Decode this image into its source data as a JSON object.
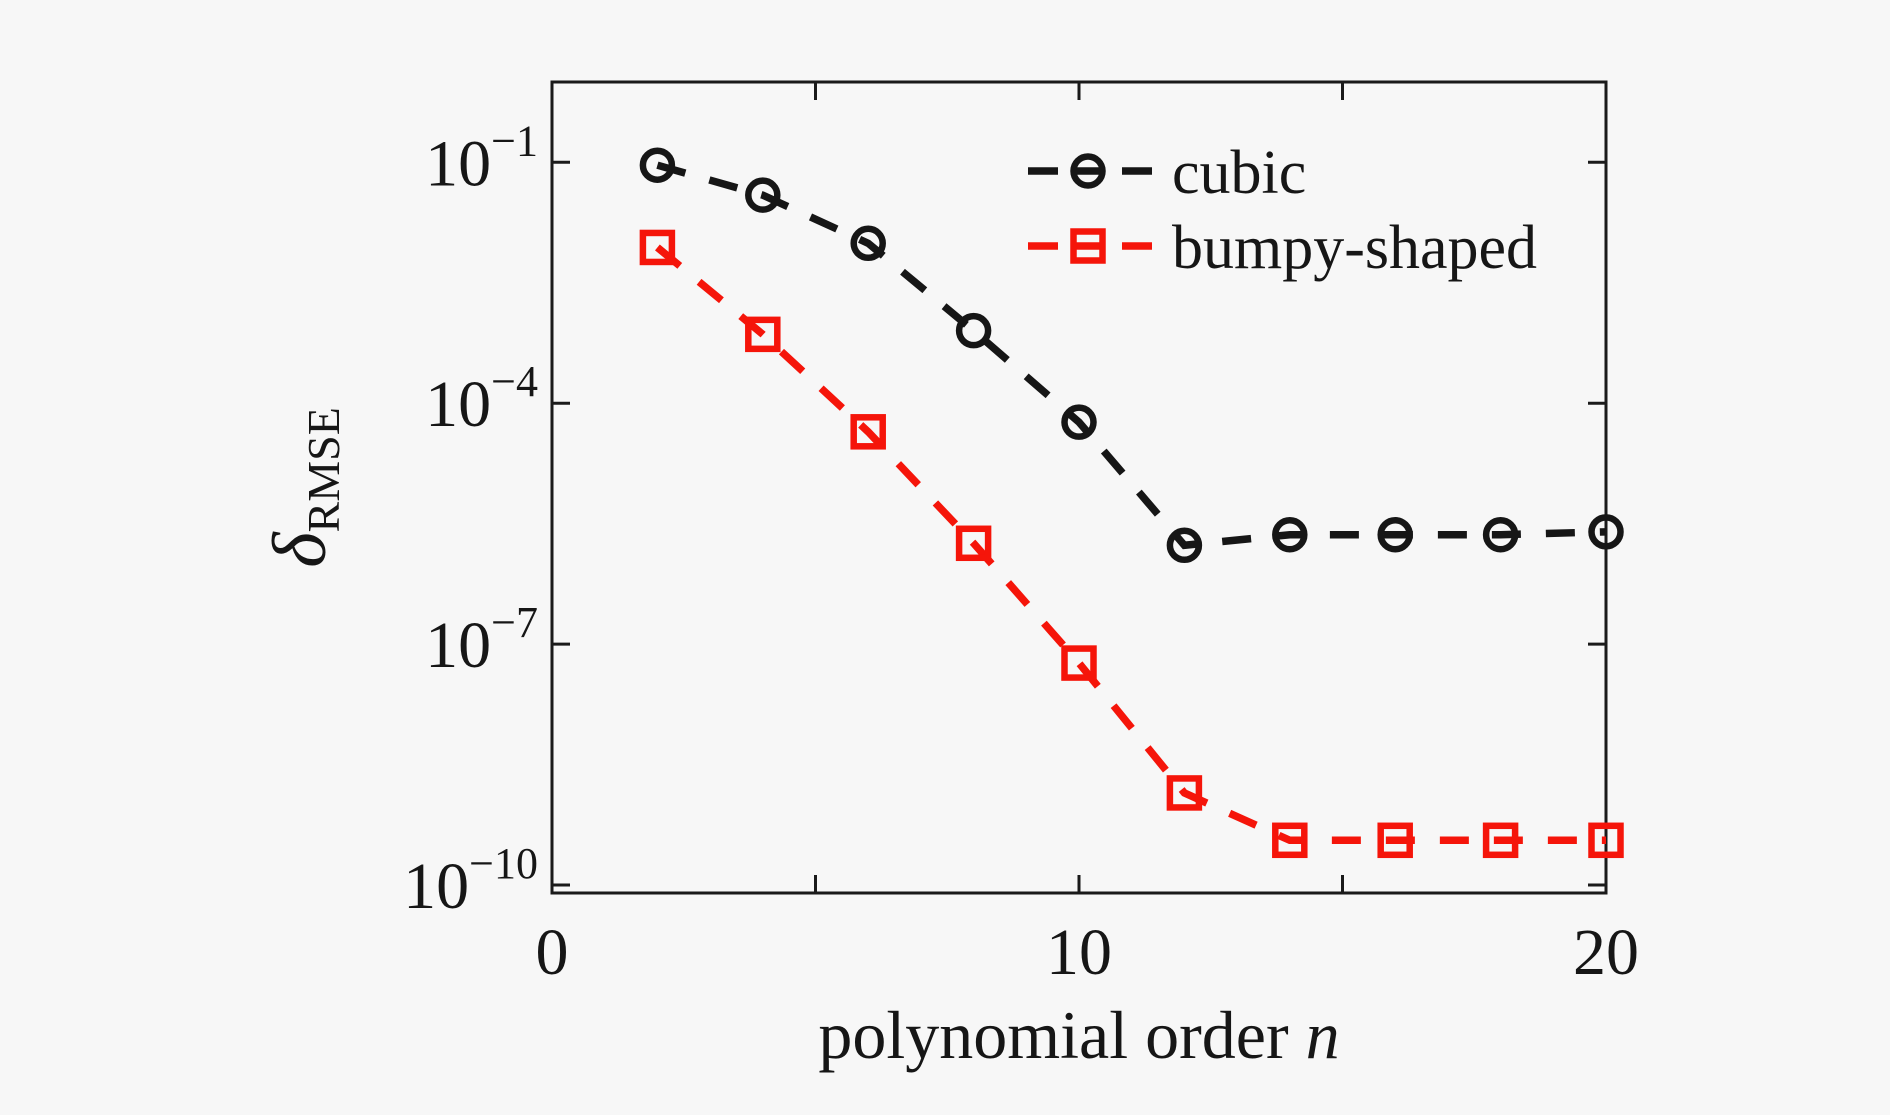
{
  "figure": {
    "background": "#f7f7f7",
    "frame_color": "#1a1a1a"
  },
  "chart_data": {
    "type": "line",
    "title": "",
    "xlabel": {
      "text": "polynomial order",
      "italic_suffix": "n"
    },
    "ylabel": {
      "symbol": "δ",
      "subscript": "RMSE"
    },
    "x_scale": "linear",
    "y_scale": "log",
    "xlim": [
      0,
      20
    ],
    "ylim_exponents": [
      -10.1,
      0
    ],
    "grid": false,
    "x_major_ticks": [
      0,
      5,
      10,
      15,
      20
    ],
    "x_labeled_ticks": [
      {
        "value": 0,
        "label": "0"
      },
      {
        "value": 10,
        "label": "10"
      },
      {
        "value": 20,
        "label": "20"
      }
    ],
    "y_labeled_ticks": [
      {
        "exponent": -1,
        "base": "10",
        "exp_label": "−1"
      },
      {
        "exponent": -4,
        "base": "10",
        "exp_label": "−4"
      },
      {
        "exponent": -7,
        "base": "10",
        "exp_label": "−7"
      },
      {
        "exponent": -10,
        "base": "10",
        "exp_label": "−10"
      }
    ],
    "legend": {
      "position": "northeast-inside",
      "frame": false
    },
    "series": [
      {
        "name": "cubic",
        "color": "#161616",
        "marker": "circle",
        "linestyle": "dashed",
        "x": [
          2,
          4,
          6,
          8,
          10,
          12,
          14,
          16,
          18,
          20
        ],
        "y": [
          0.092,
          0.039,
          0.0098,
          0.0008,
          5.8e-05,
          1.7e-06,
          2.3e-06,
          2.3e-06,
          2.3e-06,
          2.5e-06
        ]
      },
      {
        "name": "bumpy-shaped",
        "color": "#f5150a",
        "marker": "square",
        "linestyle": "dashed",
        "x": [
          2,
          4,
          6,
          8,
          10,
          12,
          14,
          16,
          18,
          20
        ],
        "y": [
          0.0087,
          0.00072,
          4.4e-05,
          1.8e-06,
          5.8e-08,
          1.4e-09,
          3.6e-10,
          3.6e-10,
          3.6e-10,
          3.6e-10
        ]
      }
    ]
  }
}
